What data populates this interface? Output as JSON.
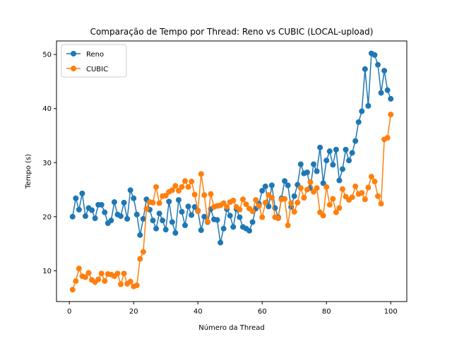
{
  "chart_data": {
    "type": "line",
    "title": "Comparação de Tempo por Thread: Reno vs CUBIC (LOCAL-upload)",
    "xlabel": "Número da Thread",
    "ylabel": "Tempo (s)",
    "xlim": [
      -4,
      105
    ],
    "ylim": [
      4.3,
      52.5
    ],
    "xticks": [
      0,
      20,
      40,
      60,
      80,
      100
    ],
    "yticks": [
      10,
      20,
      30,
      40,
      50
    ],
    "grid": false,
    "legend_position": "top-left",
    "colors": {
      "Reno": "#1f77b4",
      "CUBIC": "#ff7f0e"
    },
    "x": [
      1,
      2,
      3,
      4,
      5,
      6,
      7,
      8,
      9,
      10,
      11,
      12,
      13,
      14,
      15,
      16,
      17,
      18,
      19,
      20,
      21,
      22,
      23,
      24,
      25,
      26,
      27,
      28,
      29,
      30,
      31,
      32,
      33,
      34,
      35,
      36,
      37,
      38,
      39,
      40,
      41,
      42,
      43,
      44,
      45,
      46,
      47,
      48,
      49,
      50,
      51,
      52,
      53,
      54,
      55,
      56,
      57,
      58,
      59,
      60,
      61,
      62,
      63,
      64,
      65,
      66,
      67,
      68,
      69,
      70,
      71,
      72,
      73,
      74,
      75,
      76,
      77,
      78,
      79,
      80,
      81,
      82,
      83,
      84,
      85,
      86,
      87,
      88,
      89,
      90,
      91,
      92,
      93,
      94,
      95,
      96,
      97,
      98,
      99,
      100
    ],
    "series": [
      {
        "name": "Reno",
        "values": [
          20.0,
          23.4,
          21.3,
          24.3,
          20.1,
          21.6,
          21.2,
          19.7,
          22.2,
          22.2,
          20.8,
          18.8,
          19.3,
          22.7,
          20.4,
          20.1,
          22.6,
          19.6,
          24.9,
          23.4,
          20.4,
          16.6,
          19.6,
          23.2,
          21.3,
          19.3,
          17.8,
          20.6,
          19.3,
          17.6,
          22.8,
          19.0,
          17.0,
          23.1,
          20.9,
          18.4,
          21.9,
          20.3,
          21.8,
          21.1,
          17.5,
          20.0,
          19.0,
          21.4,
          19.5,
          19.4,
          15.2,
          17.8,
          21.4,
          20.2,
          18.1,
          21.4,
          19.9,
          18.1,
          17.8,
          17.4,
          19.0,
          21.5,
          22.4,
          24.8,
          25.6,
          21.9,
          25.8,
          21.6,
          19.9,
          23.4,
          26.6,
          25.8,
          21.8,
          23.8,
          25.9,
          29.7,
          28.0,
          28.2,
          25.3,
          29.7,
          28.4,
          32.8,
          26.2,
          30.4,
          32.1,
          29.6,
          32.4,
          26.7,
          28.8,
          32.4,
          30.4,
          31.8,
          34.0,
          37.5,
          39.5,
          47.3,
          40.5,
          50.2,
          49.9,
          48.1,
          42.9,
          47.0,
          43.4,
          41.8
        ]
      },
      {
        "name": "CUBIC",
        "values": [
          6.5,
          8.1,
          10.4,
          9.0,
          8.8,
          9.6,
          8.3,
          7.9,
          8.4,
          9.5,
          8.1,
          9.4,
          9.3,
          9.0,
          9.5,
          7.5,
          9.5,
          7.6,
          8.0,
          7.1,
          7.3,
          12.2,
          13.5,
          21.5,
          22.7,
          22.6,
          25.5,
          22.5,
          23.8,
          23.9,
          24.6,
          24.9,
          25.7,
          24.8,
          25.5,
          26.6,
          25.5,
          26.5,
          24.1,
          21.0,
          27.9,
          24.0,
          19.1,
          24.2,
          21.8,
          22.0,
          22.1,
          22.5,
          21.8,
          22.7,
          23.0,
          21.8,
          21.3,
          23.2,
          22.3,
          21.5,
          21.0,
          23.1,
          22.0,
          19.9,
          22.6,
          24.0,
          23.5,
          19.9,
          19.7,
          23.2,
          23.3,
          18.4,
          22.5,
          20.9,
          22.6,
          25.3,
          23.5,
          25.0,
          26.4,
          24.6,
          25.3,
          20.8,
          20.2,
          25.5,
          22.2,
          23.3,
          20.8,
          21.6,
          25.1,
          23.7,
          23.1,
          23.6,
          25.6,
          24.2,
          24.4,
          23.2,
          25.4,
          27.4,
          26.5,
          23.8,
          22.4,
          34.3,
          34.6,
          38.9
        ]
      }
    ]
  }
}
